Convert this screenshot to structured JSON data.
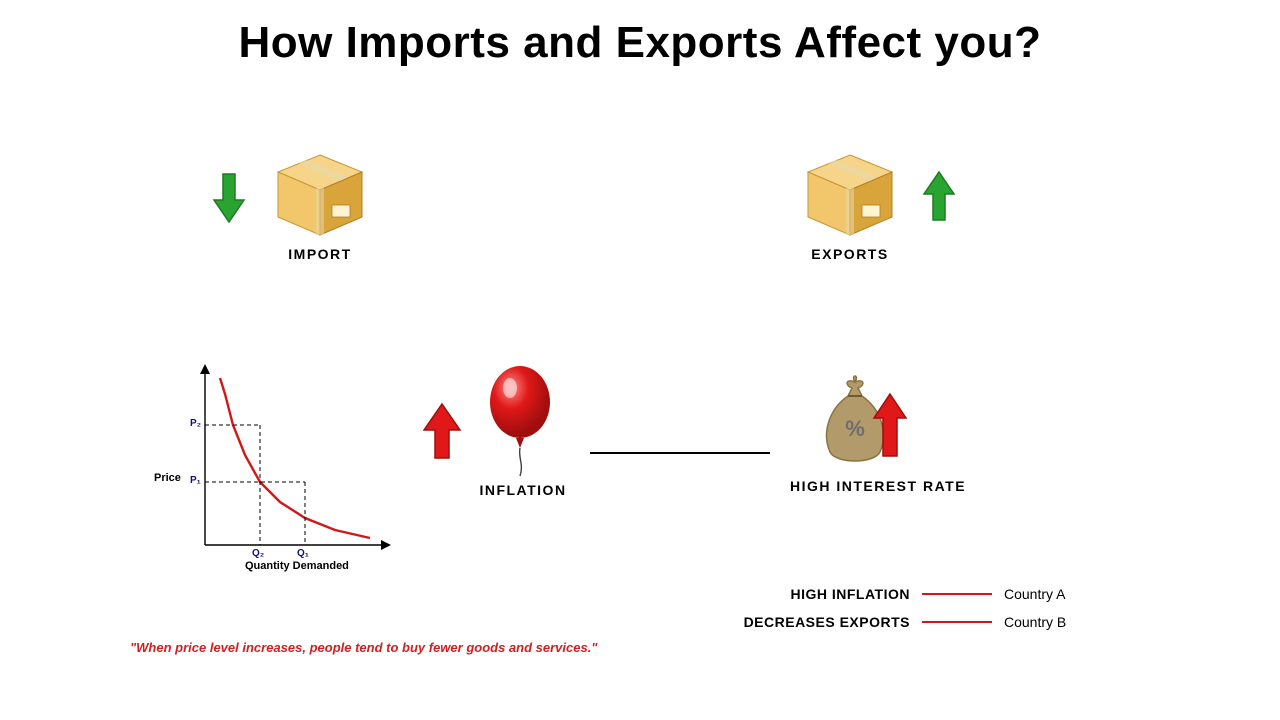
{
  "title": {
    "text": "How Imports and Exports Affect you?",
    "fontsize": 44,
    "color": "#000000"
  },
  "import": {
    "label": "IMPORT",
    "label_fontsize": 14,
    "arrow_direction": "down",
    "arrow_color": "#2aa430",
    "box_color_light": "#f2c66a",
    "box_color_dark": "#d9a43a",
    "box_tape_color": "#e8d8a8"
  },
  "exports": {
    "label": "EXPORTS",
    "label_fontsize": 14,
    "arrow_direction": "up",
    "arrow_color": "#2aa430",
    "box_color_light": "#f2c66a",
    "box_color_dark": "#d9a43a",
    "box_tape_color": "#e8d8a8"
  },
  "demand_chart": {
    "type": "line",
    "y_label": "Price",
    "x_label": "Quantity Demanded",
    "y_ticks": [
      "P₂",
      "P₁"
    ],
    "x_ticks": [
      "Q₂",
      "Q₁"
    ],
    "curve_color": "#d01818",
    "axis_color": "#000000",
    "dash_color": "#000000",
    "tick_label_color": "#10107a",
    "label_fontsize": 11,
    "caption": "\"When price level increases, people tend to buy fewer goods and services.\"",
    "caption_color": "#d02020",
    "caption_fontsize": 13,
    "curve_points": [
      [
        15,
        8
      ],
      [
        20,
        24
      ],
      [
        28,
        55
      ],
      [
        40,
        85
      ],
      [
        55,
        112
      ],
      [
        75,
        132
      ],
      [
        100,
        148
      ],
      [
        130,
        160
      ],
      [
        165,
        168
      ]
    ],
    "p1_y": 112,
    "p2_y": 55,
    "q1_x": 100,
    "q2_x": 55
  },
  "inflation": {
    "label": "INFLATION",
    "label_fontsize": 14,
    "arrow_color": "#e01818",
    "balloon_color": "#e01818",
    "balloon_highlight": "#ff8a8a"
  },
  "connector": {
    "color": "#000000",
    "width": 2
  },
  "interest": {
    "label": "HIGH INTEREST RATE",
    "label_fontsize": 14,
    "bag_color": "#b39a6a",
    "bag_dark": "#8a7442",
    "arrow_color": "#e01818",
    "percent_color": "#6e6e6e"
  },
  "legend": {
    "rows": [
      {
        "left": "HIGH INFLATION",
        "right": "Country A"
      },
      {
        "left": "DECREASES EXPORTS",
        "right": "Country B"
      }
    ],
    "line_color": "#d01818",
    "left_fontsize": 14,
    "right_fontsize": 14
  },
  "background_color": "#ffffff"
}
